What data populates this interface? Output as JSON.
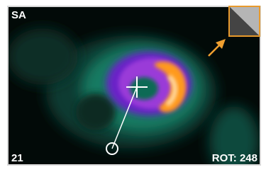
{
  "viewer": {
    "view_label": "SA",
    "slice_label": "21",
    "rotation_label": "ROT: 248"
  }
}
